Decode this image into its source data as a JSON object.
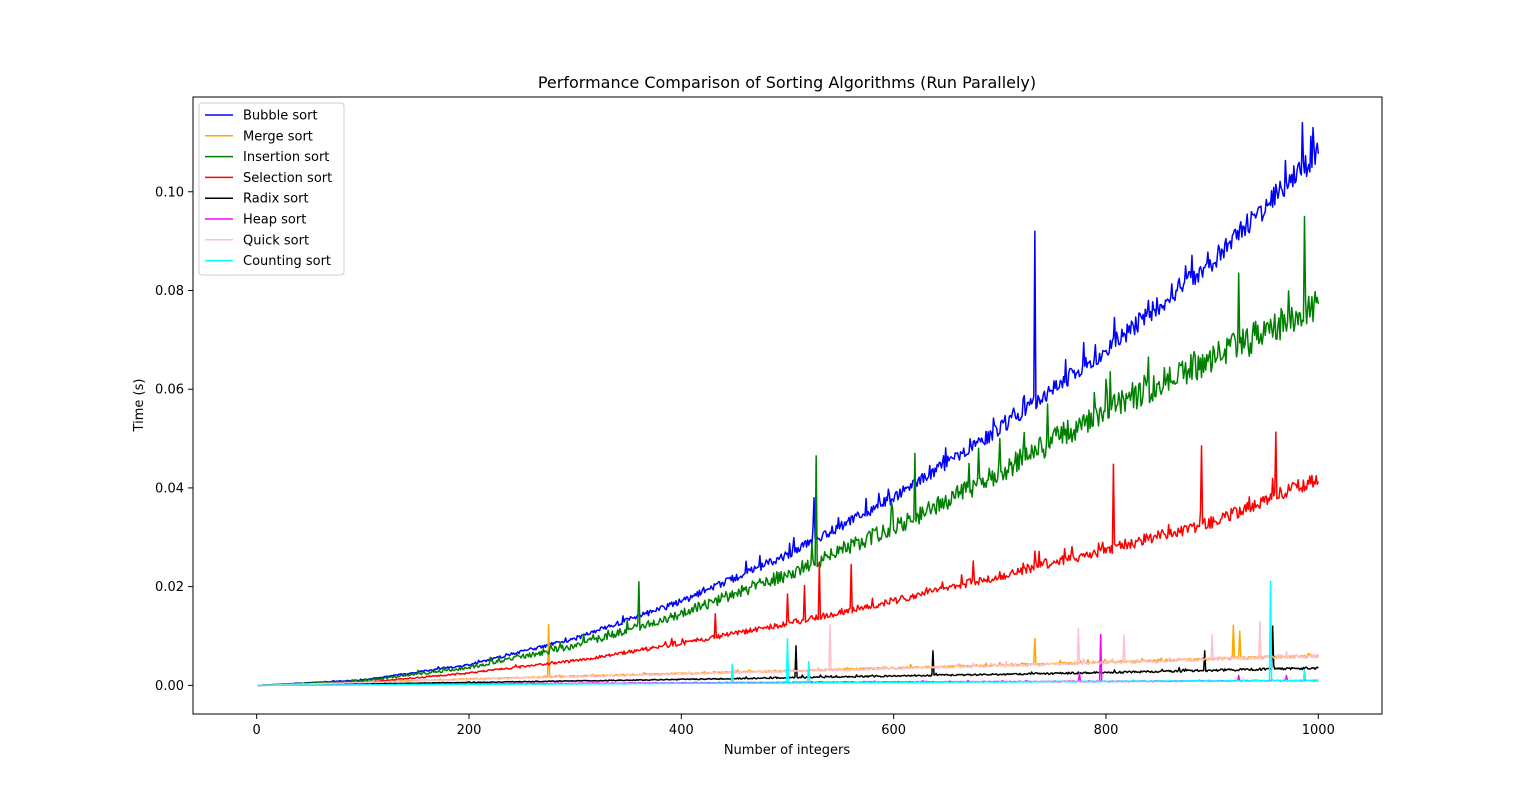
{
  "chart_data": {
    "type": "line",
    "title": "Performance Comparison of Sorting Algorithms (Run Parallely)",
    "xlabel": "Number of integers",
    "ylabel": "Time (s)",
    "xlim": [
      -60,
      1060
    ],
    "ylim": [
      -0.0058,
      0.1192
    ],
    "x_ticks": [
      0,
      200,
      400,
      600,
      800,
      1000
    ],
    "x_tick_labels": [
      "0",
      "200",
      "400",
      "600",
      "800",
      "1000"
    ],
    "y_ticks": [
      0.0,
      0.02,
      0.04,
      0.06,
      0.08,
      0.1
    ],
    "y_tick_labels": [
      "0.00",
      "0.02",
      "0.04",
      "0.06",
      "0.08",
      "0.10"
    ],
    "grid": false,
    "legend_position": "upper-left",
    "x_range": [
      1,
      1000
    ],
    "series": [
      {
        "name": "Bubble sort",
        "color": "#0000ff",
        "points": [
          [
            1,
            0.0
          ],
          [
            100,
            0.0011
          ],
          [
            200,
            0.0042
          ],
          [
            300,
            0.0095
          ],
          [
            400,
            0.017
          ],
          [
            500,
            0.0265
          ],
          [
            600,
            0.038
          ],
          [
            700,
            0.052
          ],
          [
            800,
            0.068
          ],
          [
            900,
            0.086
          ],
          [
            1000,
            0.108
          ]
        ],
        "noise": 0.0025,
        "spikes": [
          [
            525,
            0.038
          ],
          [
            733,
            0.092
          ],
          [
            762,
            0.066
          ],
          [
            790,
            0.069
          ],
          [
            840,
            0.078
          ],
          [
            985,
            0.114
          ],
          [
            995,
            0.113
          ]
        ]
      },
      {
        "name": "Merge sort",
        "color": "#ffa500",
        "points": [
          [
            1,
            0.0
          ],
          [
            200,
            0.0013
          ],
          [
            400,
            0.0024
          ],
          [
            600,
            0.0035
          ],
          [
            800,
            0.0047
          ],
          [
            1000,
            0.006
          ]
        ],
        "noise": 0.0003,
        "spikes": [
          [
            275,
            0.0123
          ],
          [
            733,
            0.0095
          ],
          [
            920,
            0.0122
          ],
          [
            926,
            0.011
          ]
        ]
      },
      {
        "name": "Insertion sort",
        "color": "#008000",
        "points": [
          [
            1,
            0.0
          ],
          [
            100,
            0.0009
          ],
          [
            200,
            0.0036
          ],
          [
            300,
            0.008
          ],
          [
            400,
            0.0145
          ],
          [
            500,
            0.0225
          ],
          [
            600,
            0.032
          ],
          [
            700,
            0.043
          ],
          [
            800,
            0.056
          ],
          [
            900,
            0.066
          ],
          [
            1000,
            0.077
          ]
        ],
        "noise": 0.0035,
        "spikes": [
          [
            360,
            0.021
          ],
          [
            527,
            0.0465
          ],
          [
            620,
            0.047
          ],
          [
            700,
            0.05
          ],
          [
            745,
            0.057
          ],
          [
            800,
            0.062
          ],
          [
            925,
            0.0835
          ],
          [
            987,
            0.095
          ]
        ]
      },
      {
        "name": "Selection sort",
        "color": "#ff0000",
        "points": [
          [
            1,
            0.0
          ],
          [
            100,
            0.0006
          ],
          [
            200,
            0.0025
          ],
          [
            300,
            0.005
          ],
          [
            400,
            0.0085
          ],
          [
            500,
            0.0125
          ],
          [
            600,
            0.0172
          ],
          [
            700,
            0.0222
          ],
          [
            800,
            0.0275
          ],
          [
            900,
            0.033
          ],
          [
            1000,
            0.042
          ]
        ],
        "noise": 0.0015,
        "spikes": [
          [
            432,
            0.0145
          ],
          [
            500,
            0.0185
          ],
          [
            516,
            0.0202
          ],
          [
            530,
            0.025
          ],
          [
            560,
            0.0245
          ],
          [
            675,
            0.0252
          ],
          [
            733,
            0.0272
          ],
          [
            807,
            0.0448
          ],
          [
            890,
            0.0485
          ],
          [
            960,
            0.0513
          ]
        ]
      },
      {
        "name": "Radix sort",
        "color": "#000000",
        "points": [
          [
            1,
            0.0
          ],
          [
            200,
            0.0006
          ],
          [
            400,
            0.0012
          ],
          [
            600,
            0.0019
          ],
          [
            800,
            0.0026
          ],
          [
            1000,
            0.0035
          ]
        ],
        "noise": 0.00025,
        "spikes": [
          [
            508,
            0.008
          ],
          [
            637,
            0.007
          ],
          [
            893,
            0.007
          ],
          [
            957,
            0.012
          ]
        ]
      },
      {
        "name": "Heap sort",
        "color": "#ff00ff",
        "points": [
          [
            1,
            0.0
          ],
          [
            200,
            0.0003
          ],
          [
            400,
            0.0005
          ],
          [
            600,
            0.0007
          ],
          [
            800,
            0.0008
          ],
          [
            1000,
            0.001
          ]
        ],
        "noise": 0.0001,
        "spikes": [
          [
            775,
            0.0025
          ],
          [
            795,
            0.0103
          ],
          [
            925,
            0.002
          ],
          [
            970,
            0.002
          ]
        ]
      },
      {
        "name": "Quick sort",
        "color": "#ffc0cb",
        "points": [
          [
            1,
            0.0
          ],
          [
            200,
            0.0012
          ],
          [
            400,
            0.0023
          ],
          [
            600,
            0.0034
          ],
          [
            800,
            0.0046
          ],
          [
            1000,
            0.006
          ]
        ],
        "noise": 0.0004,
        "spikes": [
          [
            540,
            0.0123
          ],
          [
            774,
            0.0115
          ],
          [
            817,
            0.0102
          ],
          [
            900,
            0.0103
          ],
          [
            945,
            0.013
          ]
        ]
      },
      {
        "name": "Counting sort",
        "color": "#00ffff",
        "points": [
          [
            1,
            0.0
          ],
          [
            200,
            0.0002
          ],
          [
            400,
            0.0004
          ],
          [
            600,
            0.0006
          ],
          [
            800,
            0.0008
          ],
          [
            1000,
            0.001
          ]
        ],
        "noise": 0.0001,
        "spikes": [
          [
            448,
            0.0042
          ],
          [
            500,
            0.0095
          ],
          [
            520,
            0.0048
          ],
          [
            955,
            0.0211
          ],
          [
            987,
            0.003
          ]
        ]
      }
    ]
  }
}
